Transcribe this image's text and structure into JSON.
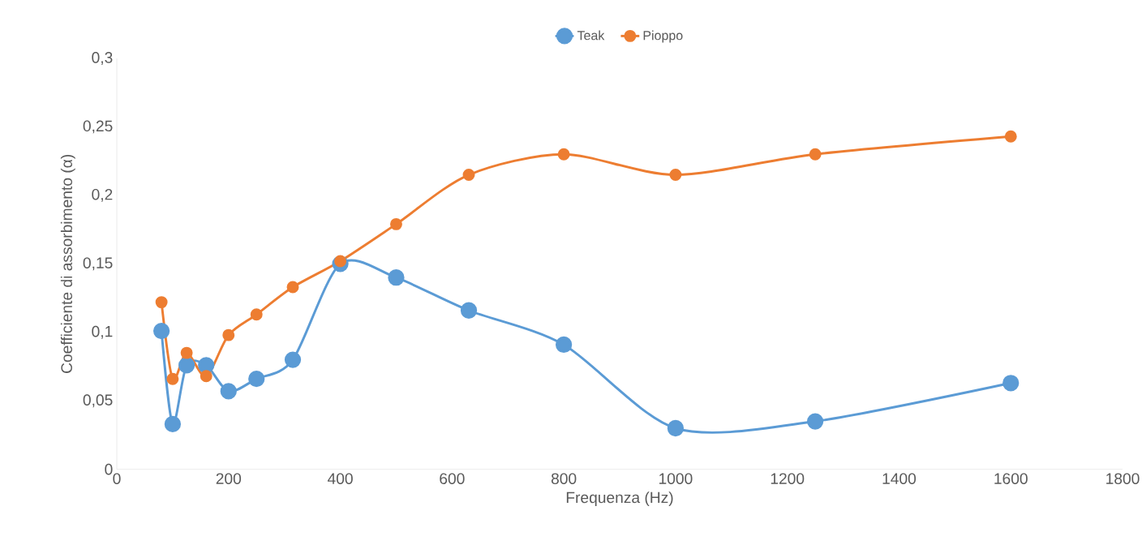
{
  "chart_data": {
    "type": "line",
    "xlabel": "Frequenza (Hz)",
    "ylabel": "Coefficiente di assorbimento (α)",
    "x": [
      80,
      100,
      125,
      160,
      200,
      250,
      315,
      400,
      500,
      630,
      800,
      1000,
      1250,
      1600
    ],
    "series": [
      {
        "name": "Teak",
        "color": "#5b9bd5",
        "values": [
          0.101,
          0.033,
          0.076,
          0.076,
          0.057,
          0.066,
          0.08,
          0.15,
          0.14,
          0.116,
          0.091,
          0.03,
          0.035,
          0.063
        ]
      },
      {
        "name": "Pioppo",
        "color": "#ed7d31",
        "values": [
          0.122,
          0.066,
          0.085,
          0.068,
          0.098,
          0.113,
          0.133,
          0.152,
          0.179,
          0.215,
          0.23,
          0.215,
          0.23,
          0.243
        ]
      }
    ],
    "xlim": [
      0,
      1800
    ],
    "xticks": [
      0,
      200,
      400,
      600,
      800,
      1000,
      1200,
      1400,
      1600,
      1800
    ],
    "ylim": [
      0,
      0.3
    ],
    "yticks": [
      0,
      {
        "value": 0.05,
        "label": "0,05"
      },
      {
        "value": 0.1,
        "label": "0,1"
      },
      {
        "value": 0.15,
        "label": "0,15"
      },
      {
        "value": 0.2,
        "label": "0,2"
      },
      {
        "value": 0.25,
        "label": "0,25"
      },
      {
        "value": 0.3,
        "label": "0,3"
      }
    ],
    "marker": "circle",
    "line_style": "solid",
    "legend": "top",
    "grid": false
  }
}
